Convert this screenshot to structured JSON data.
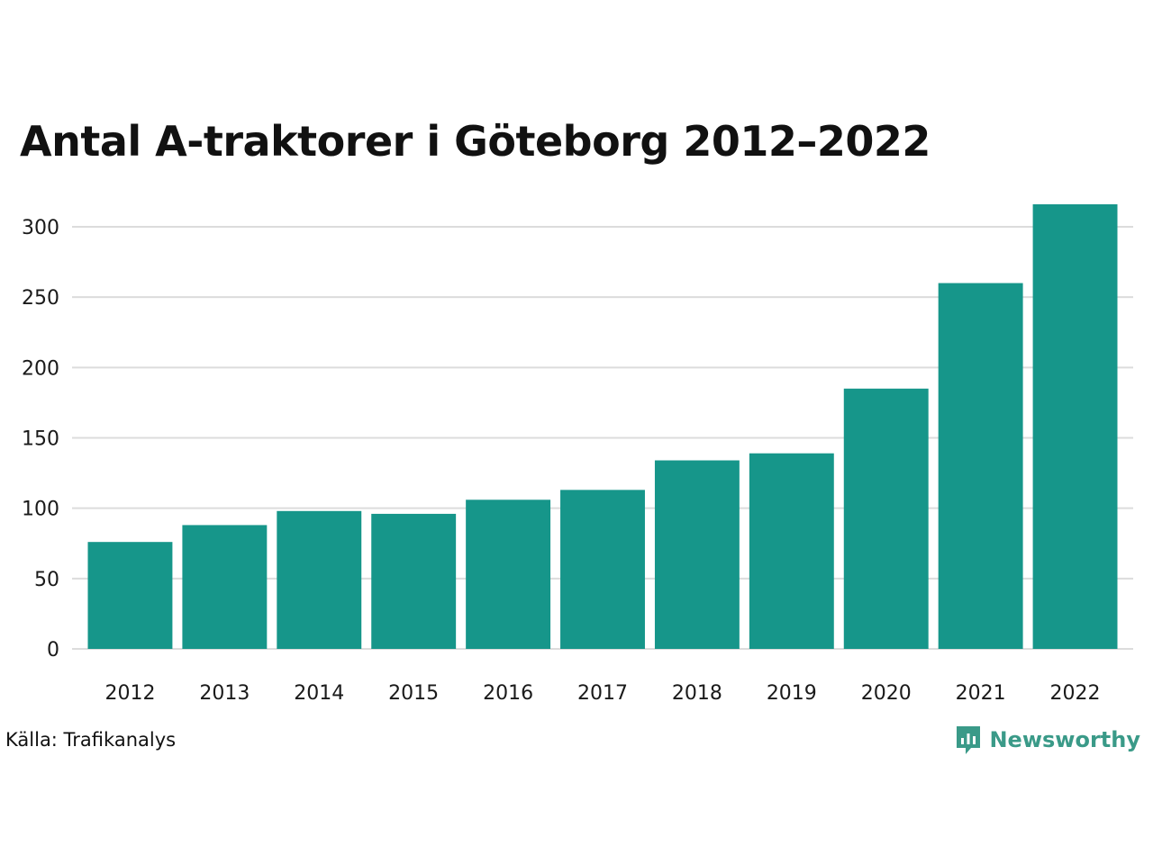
{
  "chart_data": {
    "type": "bar",
    "title": "Antal A-traktorer i Göteborg 2012–2022",
    "categories": [
      "2012",
      "2013",
      "2014",
      "2015",
      "2016",
      "2017",
      "2018",
      "2019",
      "2020",
      "2021",
      "2022"
    ],
    "values": [
      76,
      88,
      98,
      96,
      106,
      113,
      134,
      139,
      185,
      260,
      316
    ],
    "yticks": [
      0,
      50,
      100,
      150,
      200,
      250,
      300
    ],
    "ylim": [
      0,
      320
    ],
    "xlabel": "",
    "ylabel": "",
    "grid": true,
    "bar_color": "#16968a"
  },
  "footer": {
    "source": "Källa: Trafikanalys",
    "brand": "Newsworthy",
    "brand_icon": "newsworthy-logo-icon",
    "brand_color": "#3a9a88"
  }
}
